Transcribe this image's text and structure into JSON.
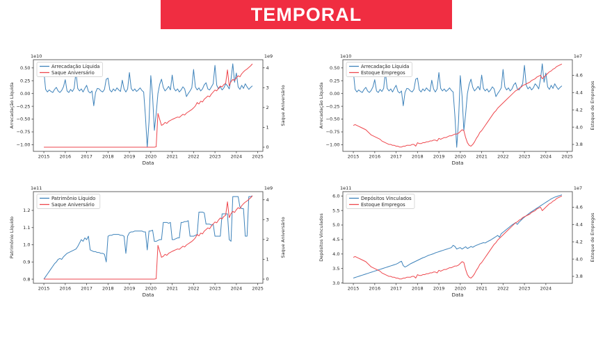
{
  "header": {
    "title": "TEMPORAL",
    "background_color": "#f02d41",
    "text_color": "#ffffff"
  },
  "colors": {
    "blue_line": "#3d82ba",
    "red_line": "#ee464c",
    "spine": "#3c3c3c",
    "legend_border": "#c9c9c9"
  },
  "x_monthly": {
    "start": 2015,
    "step_months": 1,
    "count": 118
  },
  "series_data": {
    "arrecadacao_liquida_1e10": [
      0.43,
      0.08,
      0.03,
      0.07,
      0.04,
      0.02,
      0.08,
      0.12,
      0.05,
      0.02,
      0.06,
      0.13,
      0.27,
      0.05,
      0.02,
      0.08,
      0.04,
      0.1,
      0.42,
      0.1,
      0.05,
      0.09,
      0.03,
      0.1,
      0.16,
      0.04,
      0.01,
      0.05,
      -0.24,
      0.02,
      0.1,
      0.09,
      0.05,
      0.03,
      0.08,
      0.28,
      0.3,
      0.07,
      0.03,
      0.09,
      0.05,
      0.11,
      0.07,
      0.04,
      0.26,
      0.09,
      0.03,
      0.09,
      0.41,
      0.1,
      0.05,
      0.09,
      0.04,
      0.07,
      0.11,
      0.06,
      0.03,
      -0.45,
      -1.05,
      -0.55,
      0.35,
      -0.05,
      -0.72,
      -0.4,
      0.0,
      0.18,
      0.28,
      0.12,
      0.05,
      0.09,
      0.14,
      0.07,
      0.36,
      0.1,
      0.05,
      0.09,
      0.03,
      0.07,
      0.13,
      0.09,
      -0.06,
      0.0,
      0.05,
      0.11,
      0.47,
      0.13,
      0.07,
      0.11,
      0.05,
      0.09,
      0.17,
      0.21,
      0.09,
      0.07,
      0.13,
      0.19,
      0.55,
      0.16,
      0.09,
      0.13,
      0.07,
      0.11,
      0.19,
      0.15,
      0.09,
      0.28,
      0.58,
      0.22,
      0.4,
      0.13,
      0.08,
      0.16,
      0.1,
      0.19,
      0.13,
      0.08,
      0.12,
      0.15
    ],
    "saque_aniversario_1e9": [
      0,
      0,
      0,
      0,
      0,
      0,
      0,
      0,
      0,
      0,
      0,
      0,
      0,
      0,
      0,
      0,
      0,
      0,
      0,
      0,
      0,
      0,
      0,
      0,
      0,
      0,
      0,
      0,
      0,
      0,
      0,
      0,
      0,
      0,
      0,
      0,
      0,
      0,
      0,
      0,
      0,
      0,
      0,
      0,
      0,
      0,
      0,
      0,
      0,
      0,
      0,
      0,
      0,
      0,
      0,
      0,
      0,
      0,
      0,
      0,
      0,
      0,
      0,
      0.02,
      1.7,
      1.4,
      1.1,
      1.15,
      1.25,
      1.2,
      1.3,
      1.35,
      1.4,
      1.44,
      1.48,
      1.52,
      1.5,
      1.58,
      1.66,
      1.62,
      1.72,
      1.78,
      1.84,
      1.9,
      1.98,
      2.08,
      2.25,
      2.18,
      2.32,
      2.28,
      2.42,
      2.5,
      2.58,
      2.54,
      2.68,
      2.78,
      2.88,
      2.84,
      2.98,
      3.08,
      3.04,
      3.16,
      3.22,
      3.9,
      3.1,
      3.3,
      3.42,
      3.36,
      3.5,
      3.6,
      3.55,
      3.7,
      3.8,
      3.88,
      3.94,
      4.02,
      4.1,
      4.2
    ],
    "estoque_empregos_1e7": [
      4.02,
      4.03,
      4.02,
      4.01,
      4.0,
      3.99,
      3.98,
      3.97,
      3.95,
      3.93,
      3.91,
      3.9,
      3.89,
      3.88,
      3.87,
      3.86,
      3.84,
      3.83,
      3.82,
      3.81,
      3.8,
      3.8,
      3.79,
      3.79,
      3.78,
      3.78,
      3.77,
      3.77,
      3.78,
      3.78,
      3.79,
      3.79,
      3.79,
      3.8,
      3.8,
      3.78,
      3.82,
      3.81,
      3.81,
      3.82,
      3.82,
      3.83,
      3.83,
      3.84,
      3.84,
      3.85,
      3.85,
      3.84,
      3.87,
      3.86,
      3.87,
      3.88,
      3.88,
      3.89,
      3.9,
      3.9,
      3.91,
      3.92,
      3.92,
      3.93,
      3.95,
      3.97,
      3.96,
      3.88,
      3.82,
      3.79,
      3.78,
      3.8,
      3.83,
      3.87,
      3.9,
      3.94,
      3.96,
      3.99,
      4.02,
      4.05,
      4.08,
      4.11,
      4.14,
      4.17,
      4.19,
      4.22,
      4.24,
      4.26,
      4.28,
      4.3,
      4.32,
      4.34,
      4.36,
      4.38,
      4.4,
      4.42,
      4.43,
      4.45,
      4.46,
      4.48,
      4.49,
      4.5,
      4.51,
      4.52,
      4.54,
      4.55,
      4.56,
      4.58,
      4.59,
      4.6,
      4.56,
      4.58,
      4.6,
      4.62,
      4.64,
      4.65,
      4.67,
      4.68,
      4.7,
      4.71,
      4.72,
      4.73
    ],
    "patrimonio_liquido_1e11": [
      0.8,
      0.815,
      0.83,
      0.845,
      0.86,
      0.875,
      0.89,
      0.9,
      0.915,
      0.92,
      0.915,
      0.93,
      0.94,
      0.95,
      0.955,
      0.96,
      0.965,
      0.97,
      0.975,
      0.99,
      1.01,
      1.03,
      1.02,
      1.04,
      1.03,
      1.05,
      0.97,
      0.965,
      0.96,
      0.96,
      0.955,
      0.955,
      0.95,
      0.95,
      0.945,
      0.9,
      1.05,
      1.055,
      1.055,
      1.06,
      1.06,
      1.06,
      1.06,
      1.055,
      1.055,
      1.05,
      0.95,
      1.05,
      1.07,
      1.075,
      1.075,
      1.08,
      1.08,
      1.08,
      1.08,
      1.08,
      1.075,
      1.075,
      0.97,
      1.08,
      1.08,
      1.085,
      1.02,
      1.02,
      1.025,
      1.03,
      1.03,
      1.13,
      1.13,
      1.13,
      1.125,
      1.13,
      1.03,
      1.03,
      1.035,
      1.04,
      1.04,
      1.13,
      1.13,
      1.135,
      1.135,
      1.14,
      1.05,
      1.05,
      1.05,
      1.055,
      1.06,
      1.19,
      1.19,
      1.19,
      1.185,
      1.12,
      1.12,
      1.12,
      1.115,
      1.12,
      1.05,
      1.05,
      1.05,
      1.05,
      1.18,
      1.18,
      1.18,
      1.18,
      1.03,
      1.02,
      1.28,
      1.28,
      1.28,
      1.28,
      1.22,
      1.21,
      1.21,
      1.05,
      1.05,
      1.28,
      1.28,
      1.285
    ],
    "depositos_vinculados_1e11": [
      3.17,
      3.19,
      3.21,
      3.23,
      3.25,
      3.27,
      3.29,
      3.31,
      3.33,
      3.35,
      3.37,
      3.39,
      3.41,
      3.43,
      3.45,
      3.47,
      3.49,
      3.51,
      3.53,
      3.55,
      3.57,
      3.59,
      3.61,
      3.63,
      3.65,
      3.68,
      3.72,
      3.75,
      3.6,
      3.55,
      3.58,
      3.62,
      3.66,
      3.69,
      3.72,
      3.75,
      3.78,
      3.81,
      3.84,
      3.87,
      3.89,
      3.92,
      3.95,
      3.97,
      3.99,
      4.01,
      4.04,
      4.06,
      4.08,
      4.1,
      4.12,
      4.14,
      4.16,
      4.18,
      4.2,
      4.22,
      4.3,
      4.26,
      4.17,
      4.2,
      4.22,
      4.17,
      4.21,
      4.25,
      4.19,
      4.22,
      4.26,
      4.23,
      4.27,
      4.3,
      4.32,
      4.35,
      4.37,
      4.39,
      4.38,
      4.42,
      4.45,
      4.48,
      4.52,
      4.56,
      4.6,
      4.64,
      4.58,
      4.7,
      4.75,
      4.8,
      4.85,
      4.9,
      4.95,
      5.0,
      5.04,
      5.08,
      5.02,
      5.1,
      5.16,
      5.22,
      5.27,
      5.32,
      5.37,
      5.42,
      5.46,
      5.5,
      5.54,
      5.58,
      5.62,
      5.66,
      5.7,
      5.74,
      5.78,
      5.82,
      5.86,
      5.9,
      5.93,
      5.96,
      5.98,
      6.0,
      6.02,
      6.04
    ]
  },
  "chart_data": [
    {
      "type": "line",
      "position": "top-left",
      "xlabel": "Data",
      "xlim": [
        2014.51,
        2025.24
      ],
      "x_ticks": [
        2015,
        2016,
        2017,
        2018,
        2019,
        2020,
        2021,
        2022,
        2023,
        2024,
        2025
      ],
      "left_axis": {
        "label": "Arrecadação Líquida",
        "offset": "1e10",
        "lim": [
          -1.13,
          0.66
        ],
        "tick_vals": [
          0.5,
          0.25,
          0.0,
          -0.25,
          -0.5,
          -0.75,
          -1.0
        ],
        "tick_labels": [
          "0.50",
          "0.25",
          "0.00",
          "−0.25",
          "−0.50",
          "−0.75",
          "−1.00"
        ]
      },
      "right_axis": {
        "label": "Saque Aniversário",
        "offset": "1e9",
        "lim": [
          -0.21,
          4.41
        ],
        "tick_vals": [
          0,
          1,
          2,
          3,
          4
        ],
        "tick_labels": [
          "0",
          "1",
          "2",
          "3",
          "4"
        ]
      },
      "legend": [
        "Arrecadação Líquida",
        "Saque Aniversário"
      ],
      "series": [
        {
          "name": "Arrecadação Líquida",
          "data": "arrecadacao_liquida_1e10",
          "axis": "left",
          "color": "#3d82ba"
        },
        {
          "name": "Saque Aniversário",
          "data": "saque_aniversario_1e9",
          "axis": "right",
          "color": "#ee464c"
        }
      ]
    },
    {
      "type": "line",
      "position": "top-right",
      "xlabel": "Data",
      "xlim": [
        2014.51,
        2025.24
      ],
      "x_ticks": [
        2015,
        2016,
        2017,
        2018,
        2019,
        2020,
        2021,
        2022,
        2023,
        2024,
        2025
      ],
      "left_axis": {
        "label": "Arrecadação Líquida",
        "offset": "1e10",
        "lim": [
          -1.13,
          0.66
        ],
        "tick_vals": [
          0.5,
          0.25,
          0.0,
          -0.25,
          -0.5,
          -0.75,
          -1.0
        ],
        "tick_labels": [
          "0.50",
          "0.25",
          "0.00",
          "−0.25",
          "−0.50",
          "−0.75",
          "−1.00"
        ]
      },
      "right_axis": {
        "label": "Estoque de Empregos",
        "offset": "1e7",
        "lim": [
          3.72,
          4.78
        ],
        "tick_vals": [
          3.8,
          4.0,
          4.2,
          4.4,
          4.6
        ],
        "tick_labels": [
          "3.8",
          "4.0",
          "4.2",
          "4.4",
          "4.6"
        ]
      },
      "legend": [
        "Arrecadação Líquida",
        "Estoque Empregos"
      ],
      "series": [
        {
          "name": "Arrecadação Líquida",
          "data": "arrecadacao_liquida_1e10",
          "axis": "left",
          "color": "#3d82ba"
        },
        {
          "name": "Estoque Empregos",
          "data": "estoque_empregos_1e7",
          "axis": "right",
          "color": "#ee464c"
        }
      ]
    },
    {
      "type": "line",
      "position": "bottom-left",
      "xlabel": "Data",
      "xlim": [
        2014.51,
        2025.24
      ],
      "x_ticks": [
        2015,
        2016,
        2017,
        2018,
        2019,
        2020,
        2021,
        2022,
        2023,
        2024,
        2025
      ],
      "left_axis": {
        "label": "Patrimônio Líquido",
        "offset": "1e11",
        "lim": [
          0.776,
          1.309
        ],
        "tick_vals": [
          0.8,
          0.9,
          1.0,
          1.1,
          1.2
        ],
        "tick_labels": [
          "0.8",
          "0.9",
          "1.0",
          "1.1",
          "1.2"
        ]
      },
      "right_axis": {
        "label": "Saque Aniversário",
        "offset": "1e9",
        "lim": [
          -0.21,
          4.41
        ],
        "tick_vals": [
          0,
          1,
          2,
          3,
          4
        ],
        "tick_labels": [
          "0",
          "1",
          "2",
          "3",
          "4"
        ]
      },
      "legend": [
        "Patrimônio Líquido",
        "Saque Aniversário"
      ],
      "series": [
        {
          "name": "Patrimônio Líquido",
          "data": "patrimonio_liquido_1e11",
          "axis": "left",
          "color": "#3d82ba"
        },
        {
          "name": "Saque Aniversário",
          "data": "saque_aniversario_1e9",
          "axis": "right",
          "color": "#ee464c"
        }
      ]
    },
    {
      "type": "line",
      "position": "bottom-right",
      "xlabel": "Data",
      "xlim": [
        2014.51,
        2025.24
      ],
      "x_ticks": [
        2015,
        2016,
        2017,
        2018,
        2019,
        2020,
        2021,
        2022,
        2023,
        2024
      ],
      "left_axis": {
        "label": "Depósitos Vinculados",
        "offset": "1e11",
        "lim": [
          2.99,
          6.15
        ],
        "tick_vals": [
          3.0,
          3.5,
          4.0,
          4.5,
          5.0,
          5.5,
          6.0
        ],
        "tick_labels": [
          "3.0",
          "3.5",
          "4.0",
          "4.5",
          "5.0",
          "5.5",
          "6.0"
        ]
      },
      "right_axis": {
        "label": "Estoque de Empregos",
        "offset": "1e7",
        "lim": [
          3.72,
          4.78
        ],
        "tick_vals": [
          3.8,
          4.0,
          4.2,
          4.4,
          4.6
        ],
        "tick_labels": [
          "3.8",
          "4.0",
          "4.2",
          "4.4",
          "4.6"
        ]
      },
      "legend": [
        "Depósitos Vinculados",
        "Estoque Empregos"
      ],
      "series": [
        {
          "name": "Depósitos Vinculados",
          "data": "depositos_vinculados_1e11",
          "axis": "left",
          "color": "#3d82ba"
        },
        {
          "name": "Estoque Empregos",
          "data": "estoque_empregos_1e7",
          "axis": "right",
          "color": "#ee464c"
        }
      ]
    }
  ]
}
